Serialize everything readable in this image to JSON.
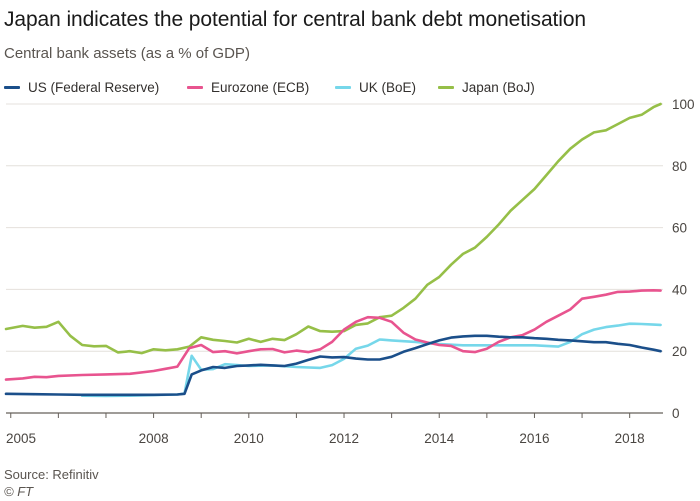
{
  "title": "Japan indicates the potential for central bank debt monetisation",
  "subtitle": "Central bank assets (as a % of GDP)",
  "source": "Source: Refinitiv",
  "credit": "© FT",
  "chart_data": {
    "type": "line",
    "title": "Japan indicates the potential for central bank debt monetisation",
    "subtitle": "Central bank assets (as a % of GDP)",
    "xlabel": "",
    "ylabel": "",
    "xlim": [
      2004.9,
      2018.7
    ],
    "ylim": [
      0,
      100
    ],
    "x_ticks": [
      "2005",
      "2008",
      "2010",
      "2012",
      "2014",
      "2016",
      "2018"
    ],
    "x_tick_values": [
      2005,
      2008,
      2010,
      2012,
      2014,
      2016,
      2018
    ],
    "y_ticks": [
      "0",
      "20",
      "40",
      "60",
      "80",
      "100"
    ],
    "y_tick_values": [
      0,
      20,
      40,
      60,
      80,
      100
    ],
    "y_axis_position": "right",
    "grid": true,
    "legend_position": "top",
    "series": [
      {
        "name": "US (Federal Reserve)",
        "color": "#1b4f8a",
        "points": [
          [
            2004.9,
            6.2
          ],
          [
            2005.5,
            6.1
          ],
          [
            2006.0,
            6.0
          ],
          [
            2006.5,
            5.9
          ],
          [
            2007.0,
            5.9
          ],
          [
            2007.5,
            5.9
          ],
          [
            2008.0,
            5.9
          ],
          [
            2008.5,
            6.0
          ],
          [
            2008.65,
            6.2
          ],
          [
            2008.8,
            12.5
          ],
          [
            2009.0,
            13.8
          ],
          [
            2009.25,
            14.9
          ],
          [
            2009.5,
            14.6
          ],
          [
            2009.75,
            15.2
          ],
          [
            2010.0,
            15.4
          ],
          [
            2010.25,
            15.6
          ],
          [
            2010.5,
            15.4
          ],
          [
            2010.75,
            15.2
          ],
          [
            2011.0,
            16.0
          ],
          [
            2011.25,
            17.2
          ],
          [
            2011.5,
            18.3
          ],
          [
            2011.75,
            18.0
          ],
          [
            2012.0,
            18.1
          ],
          [
            2012.25,
            17.6
          ],
          [
            2012.5,
            17.3
          ],
          [
            2012.75,
            17.3
          ],
          [
            2013.0,
            18.2
          ],
          [
            2013.25,
            19.8
          ],
          [
            2013.5,
            21.0
          ],
          [
            2013.75,
            22.3
          ],
          [
            2014.0,
            23.5
          ],
          [
            2014.25,
            24.4
          ],
          [
            2014.5,
            24.8
          ],
          [
            2014.75,
            25.0
          ],
          [
            2015.0,
            25.0
          ],
          [
            2015.25,
            24.7
          ],
          [
            2015.5,
            24.5
          ],
          [
            2015.75,
            24.5
          ],
          [
            2016.0,
            24.2
          ],
          [
            2016.25,
            24.0
          ],
          [
            2016.5,
            23.7
          ],
          [
            2016.75,
            23.5
          ],
          [
            2017.0,
            23.2
          ],
          [
            2017.25,
            22.9
          ],
          [
            2017.5,
            22.9
          ],
          [
            2017.75,
            22.4
          ],
          [
            2018.0,
            22.0
          ],
          [
            2018.25,
            21.2
          ],
          [
            2018.5,
            20.5
          ],
          [
            2018.65,
            20.0
          ]
        ]
      },
      {
        "name": "Eurozone (ECB)",
        "color": "#e8548f",
        "points": [
          [
            2004.9,
            10.8
          ],
          [
            2005.25,
            11.2
          ],
          [
            2005.5,
            11.7
          ],
          [
            2005.75,
            11.6
          ],
          [
            2006.0,
            12.0
          ],
          [
            2006.5,
            12.3
          ],
          [
            2007.0,
            12.5
          ],
          [
            2007.5,
            12.7
          ],
          [
            2008.0,
            13.6
          ],
          [
            2008.25,
            14.3
          ],
          [
            2008.5,
            15.0
          ],
          [
            2008.75,
            21.0
          ],
          [
            2009.0,
            22.0
          ],
          [
            2009.25,
            19.7
          ],
          [
            2009.5,
            20.0
          ],
          [
            2009.75,
            19.3
          ],
          [
            2010.0,
            20.0
          ],
          [
            2010.25,
            20.6
          ],
          [
            2010.5,
            20.7
          ],
          [
            2010.75,
            19.6
          ],
          [
            2011.0,
            20.2
          ],
          [
            2011.25,
            19.7
          ],
          [
            2011.5,
            20.6
          ],
          [
            2011.75,
            23.0
          ],
          [
            2012.0,
            27.0
          ],
          [
            2012.25,
            29.5
          ],
          [
            2012.5,
            31.0
          ],
          [
            2012.75,
            30.8
          ],
          [
            2013.0,
            29.5
          ],
          [
            2013.25,
            26.0
          ],
          [
            2013.5,
            23.8
          ],
          [
            2013.75,
            22.8
          ],
          [
            2014.0,
            22.0
          ],
          [
            2014.25,
            21.7
          ],
          [
            2014.5,
            20.0
          ],
          [
            2014.75,
            19.7
          ],
          [
            2015.0,
            20.8
          ],
          [
            2015.25,
            23.0
          ],
          [
            2015.5,
            24.5
          ],
          [
            2015.75,
            25.2
          ],
          [
            2016.0,
            27.0
          ],
          [
            2016.25,
            29.5
          ],
          [
            2016.5,
            31.5
          ],
          [
            2016.75,
            33.5
          ],
          [
            2017.0,
            37.0
          ],
          [
            2017.25,
            37.6
          ],
          [
            2017.5,
            38.3
          ],
          [
            2017.75,
            39.2
          ],
          [
            2018.0,
            39.3
          ],
          [
            2018.25,
            39.6
          ],
          [
            2018.5,
            39.7
          ],
          [
            2018.65,
            39.6
          ]
        ]
      },
      {
        "name": "UK (BoE)",
        "color": "#76d7ea",
        "points": [
          [
            2006.5,
            5.6
          ],
          [
            2007.0,
            5.5
          ],
          [
            2007.5,
            5.6
          ],
          [
            2008.0,
            5.8
          ],
          [
            2008.5,
            6.0
          ],
          [
            2008.65,
            6.3
          ],
          [
            2008.8,
            18.5
          ],
          [
            2009.0,
            14.0
          ],
          [
            2009.25,
            14.2
          ],
          [
            2009.5,
            15.8
          ],
          [
            2009.75,
            15.5
          ],
          [
            2010.0,
            15.2
          ],
          [
            2010.5,
            15.4
          ],
          [
            2011.0,
            14.9
          ],
          [
            2011.5,
            14.6
          ],
          [
            2011.75,
            15.5
          ],
          [
            2012.0,
            17.5
          ],
          [
            2012.25,
            20.8
          ],
          [
            2012.5,
            21.8
          ],
          [
            2012.75,
            23.8
          ],
          [
            2013.0,
            23.5
          ],
          [
            2013.5,
            23.0
          ],
          [
            2014.0,
            22.3
          ],
          [
            2014.5,
            21.9
          ],
          [
            2015.0,
            21.9
          ],
          [
            2015.5,
            21.9
          ],
          [
            2016.0,
            21.9
          ],
          [
            2016.5,
            21.5
          ],
          [
            2016.75,
            23.0
          ],
          [
            2017.0,
            25.5
          ],
          [
            2017.25,
            27.0
          ],
          [
            2017.5,
            27.8
          ],
          [
            2017.75,
            28.3
          ],
          [
            2018.0,
            28.9
          ],
          [
            2018.25,
            28.8
          ],
          [
            2018.5,
            28.6
          ],
          [
            2018.65,
            28.5
          ]
        ]
      },
      {
        "name": "Japan (BoJ)",
        "color": "#96bf48",
        "points": [
          [
            2004.9,
            27.2
          ],
          [
            2005.25,
            28.2
          ],
          [
            2005.5,
            27.6
          ],
          [
            2005.75,
            27.9
          ],
          [
            2006.0,
            29.5
          ],
          [
            2006.25,
            25.0
          ],
          [
            2006.5,
            22.0
          ],
          [
            2006.75,
            21.6
          ],
          [
            2007.0,
            21.7
          ],
          [
            2007.25,
            19.6
          ],
          [
            2007.5,
            20.0
          ],
          [
            2007.75,
            19.4
          ],
          [
            2008.0,
            20.6
          ],
          [
            2008.25,
            20.3
          ],
          [
            2008.5,
            20.6
          ],
          [
            2008.75,
            21.5
          ],
          [
            2009.0,
            24.5
          ],
          [
            2009.25,
            23.7
          ],
          [
            2009.5,
            23.3
          ],
          [
            2009.75,
            22.8
          ],
          [
            2010.0,
            24.0
          ],
          [
            2010.25,
            23.0
          ],
          [
            2010.5,
            24.0
          ],
          [
            2010.75,
            23.6
          ],
          [
            2011.0,
            25.5
          ],
          [
            2011.25,
            28.0
          ],
          [
            2011.5,
            26.5
          ],
          [
            2011.75,
            26.3
          ],
          [
            2012.0,
            26.5
          ],
          [
            2012.25,
            28.5
          ],
          [
            2012.5,
            29.0
          ],
          [
            2012.75,
            31.0
          ],
          [
            2013.0,
            31.5
          ],
          [
            2013.25,
            34.0
          ],
          [
            2013.5,
            37.0
          ],
          [
            2013.75,
            41.5
          ],
          [
            2014.0,
            44.0
          ],
          [
            2014.25,
            48.0
          ],
          [
            2014.5,
            51.5
          ],
          [
            2014.75,
            53.5
          ],
          [
            2015.0,
            57.0
          ],
          [
            2015.25,
            61.0
          ],
          [
            2015.5,
            65.5
          ],
          [
            2015.75,
            69.0
          ],
          [
            2016.0,
            72.5
          ],
          [
            2016.25,
            77.0
          ],
          [
            2016.5,
            81.5
          ],
          [
            2016.75,
            85.5
          ],
          [
            2017.0,
            88.5
          ],
          [
            2017.25,
            90.8
          ],
          [
            2017.5,
            91.5
          ],
          [
            2017.75,
            93.5
          ],
          [
            2018.0,
            95.5
          ],
          [
            2018.25,
            96.5
          ],
          [
            2018.5,
            99.0
          ],
          [
            2018.65,
            100.0
          ]
        ]
      }
    ]
  }
}
